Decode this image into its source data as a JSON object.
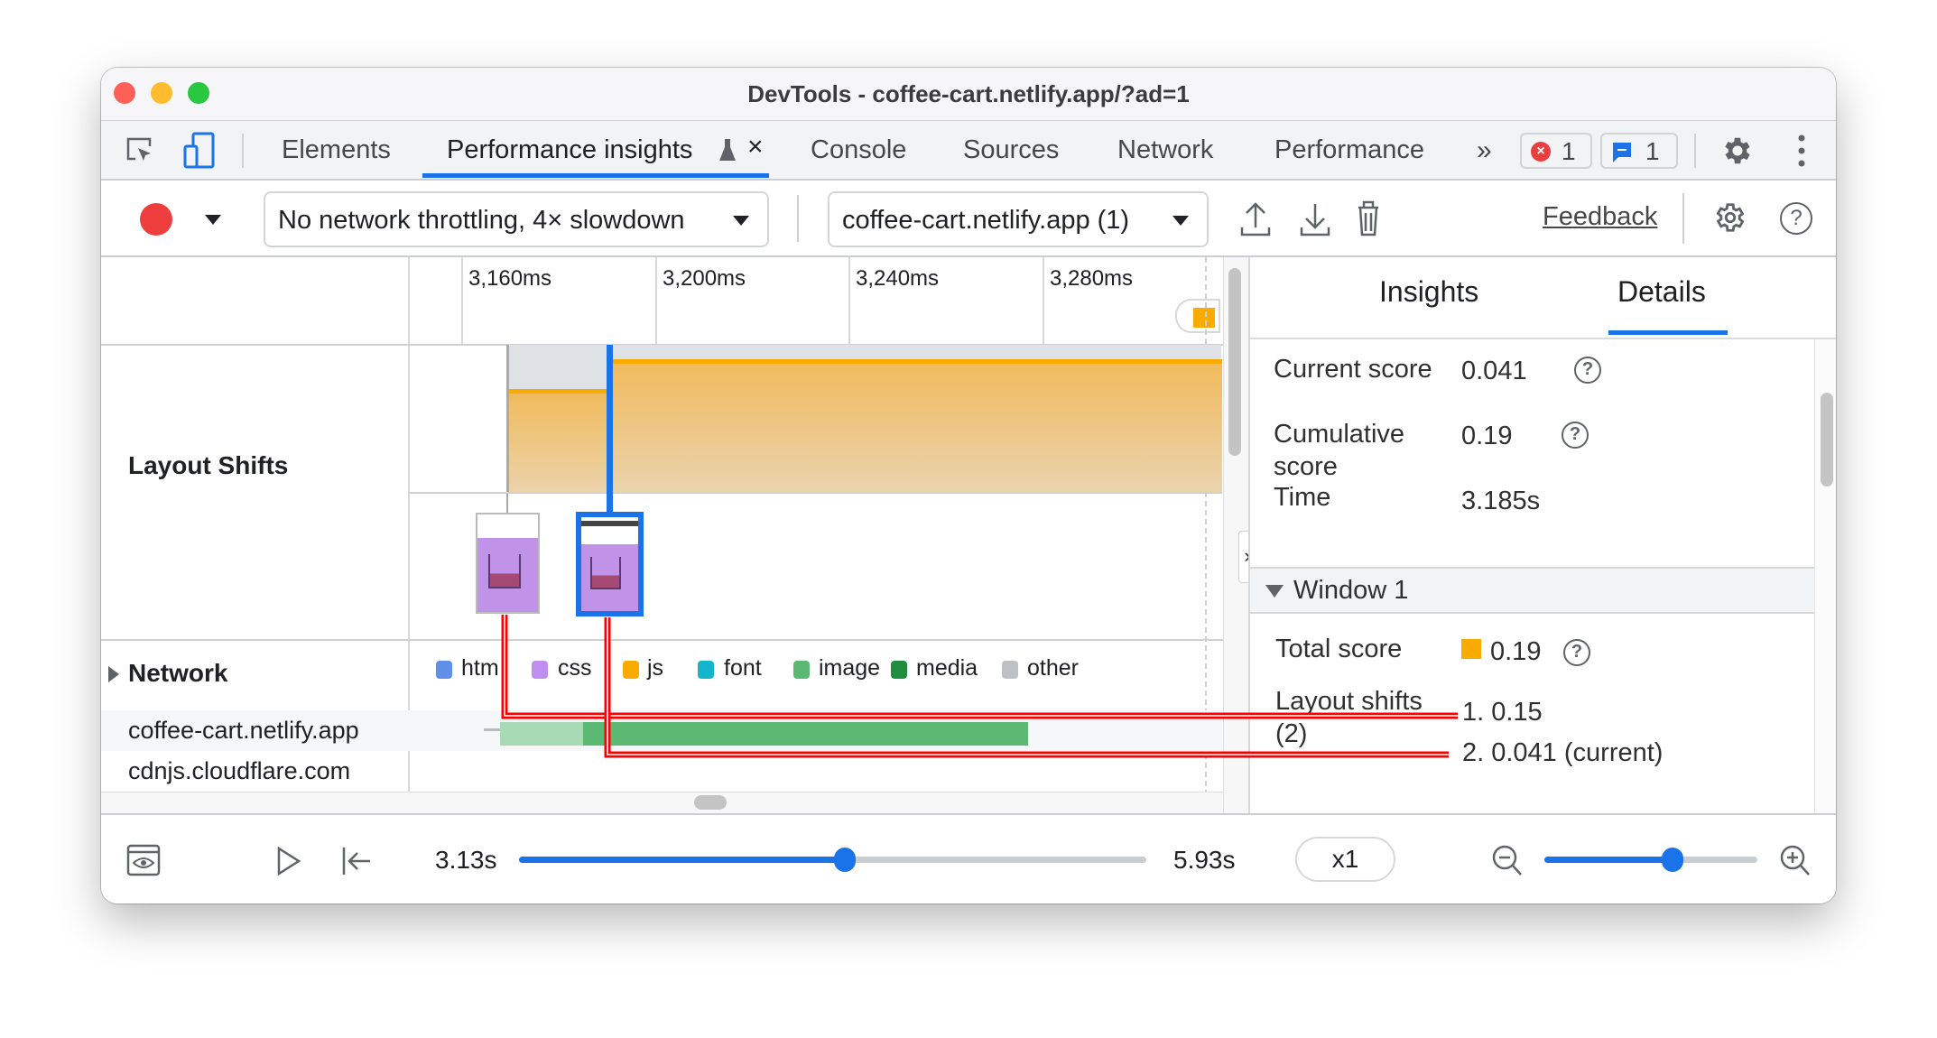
{
  "window": {
    "title": "DevTools - coffee-cart.netlify.app/?ad=1"
  },
  "tabs": [
    {
      "label": "Elements"
    },
    {
      "label": "Performance insights",
      "active": true
    },
    {
      "label": "Console"
    },
    {
      "label": "Sources"
    },
    {
      "label": "Network"
    },
    {
      "label": "Performance"
    }
  ],
  "badges": {
    "errors": "1",
    "messages": "1"
  },
  "toolbar": {
    "throttling": "No network throttling, 4× slowdown",
    "page": "coffee-cart.netlify.app (1)",
    "feedback": "Feedback"
  },
  "timeline": {
    "ticks": [
      "3,160ms",
      "3,200ms",
      "3,240ms",
      "3,280ms"
    ],
    "tracks": {
      "layout_shifts": "Layout Shifts",
      "network": "Network"
    },
    "legend": [
      {
        "label": "htm",
        "color": "#5f8fe6"
      },
      {
        "label": "css",
        "color": "#c08ef0"
      },
      {
        "label": "js",
        "color": "#f9ab00"
      },
      {
        "label": "font",
        "color": "#12b5cb"
      },
      {
        "label": "image",
        "color": "#5bb974"
      },
      {
        "label": "media",
        "color": "#1e8e3e"
      },
      {
        "label": "other",
        "color": "#bdc1c6"
      }
    ],
    "network_rows": [
      "coffee-cart.netlify.app",
      "cdnjs.cloudflare.com"
    ]
  },
  "panel": {
    "tabs": [
      "Insights",
      "Details"
    ],
    "active_tab": "Details",
    "current_score_label": "Current score",
    "current_score": "0.041",
    "cumulative_label": "Cumulative score",
    "cumulative_score": "0.19",
    "time_label": "Time",
    "time": "3.185s",
    "window_label": "Window 1",
    "total_label": "Total score",
    "total_score": "0.19",
    "shifts_label": "Layout shifts (2)",
    "shifts": [
      "1. 0.15",
      "2. 0.041 (current)"
    ]
  },
  "playback": {
    "start": "3.13s",
    "end": "5.93s",
    "speed": "x1",
    "progress": 0.52,
    "zoom": 0.6
  },
  "colors": {
    "accent": "#1a73e8",
    "layout_shift": "#f9ab00",
    "record": "#ee3d3d",
    "highlight": "#ff0000"
  }
}
